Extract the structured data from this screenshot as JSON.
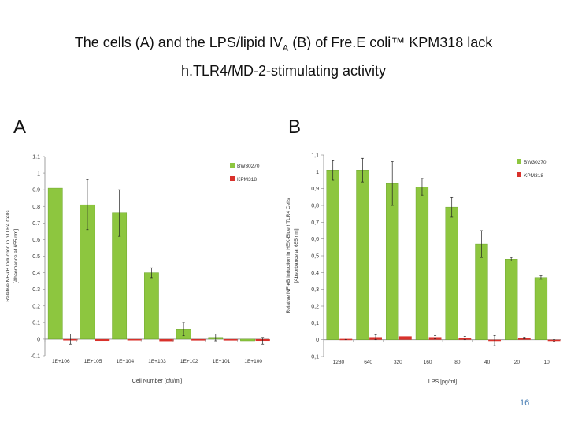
{
  "slide": {
    "title_line1_pre": "The cells (A) and the LPS/lipid IV",
    "title_sub": "A",
    "title_line1_post": " (B) of Fre.E coli™ KPM318 lack",
    "title_line2": "h.TLR4/MD-2-stimulating activity",
    "label_a": "A",
    "label_b": "B",
    "page_number": "16"
  },
  "colors": {
    "green": "#8dc63f",
    "green_dark": "#5f9a1e",
    "red": "#d9312b",
    "axis": "#888888"
  },
  "chart_data": [
    {
      "type": "bar",
      "title": "",
      "xlabel": "Cell Number [cfu/ml]",
      "ylabel": "Relative NF-κB Induction in hTLR4 Cells",
      "ylabel2": "[Absorbance at 655 nm]",
      "ylim": [
        -0.1,
        1.1
      ],
      "yticks": [
        -0.1,
        0,
        0.1,
        0.2,
        0.3,
        0.4,
        0.5,
        0.6,
        0.7,
        0.8,
        0.9,
        1,
        1.1
      ],
      "ytick_labels": [
        "-0.1",
        "0",
        "0.1",
        "0.2",
        "0.3",
        "0.4",
        "0.5",
        "0.6",
        "0.7",
        "0.8",
        "0.9",
        "1",
        "1.1"
      ],
      "categories": [
        "1E+106",
        "1E+105",
        "1E+104",
        "1E+103",
        "1E+102",
        "1E+101",
        "1E+100"
      ],
      "series": [
        {
          "name": "BW30270",
          "color": "#8dc63f",
          "values": [
            0.91,
            0.81,
            0.76,
            0.4,
            0.06,
            0.01,
            -0.01
          ],
          "errors": [
            0.0,
            0.15,
            0.14,
            0.03,
            0.04,
            0.02,
            0.0
          ]
        },
        {
          "name": "KPM318",
          "color": "#d9312b",
          "values": [
            0.0,
            -0.01,
            -0.005,
            -0.012,
            -0.008,
            -0.008,
            -0.01
          ],
          "errors": [
            0.03,
            0.0,
            0.0,
            0.0,
            0.0,
            0.0,
            0.02
          ]
        }
      ],
      "legend_position": "top-right",
      "grid": false
    },
    {
      "type": "bar",
      "title": "",
      "xlabel": "LPS [pg/ml]",
      "ylabel": "Relative NF-κB Induction in HEK-Blue hTLR4 Cells",
      "ylabel2": "[Absorbance at 655 nm]",
      "ylim": [
        -0.1,
        1.1
      ],
      "yticks": [
        -0.1,
        0,
        0.1,
        0.2,
        0.3,
        0.4,
        0.5,
        0.6,
        0.7,
        0.8,
        0.9,
        1,
        1.1
      ],
      "ytick_labels": [
        "-0,1",
        "0",
        "0,1",
        "0,2",
        "0,3",
        "0,4",
        "0,5",
        "0,6",
        "0,7",
        "0,8",
        "0,9",
        "1",
        "1,1"
      ],
      "categories": [
        "1280",
        "640",
        "320",
        "160",
        "80",
        "40",
        "20",
        "10"
      ],
      "series": [
        {
          "name": "BW30270",
          "color": "#8dc63f",
          "values": [
            1.01,
            1.01,
            0.93,
            0.91,
            0.79,
            0.57,
            0.48,
            0.37
          ],
          "errors": [
            0.06,
            0.07,
            0.13,
            0.05,
            0.06,
            0.08,
            0.01,
            0.01
          ]
        },
        {
          "name": "KPM318",
          "color": "#d9312b",
          "values": [
            0.005,
            0.015,
            0.02,
            0.015,
            0.01,
            -0.005,
            0.01,
            -0.005
          ],
          "errors": [
            0.005,
            0.015,
            0.0,
            0.01,
            0.01,
            0.03,
            0.005,
            0.005
          ]
        }
      ],
      "legend_position": "top-right",
      "grid": false
    }
  ]
}
